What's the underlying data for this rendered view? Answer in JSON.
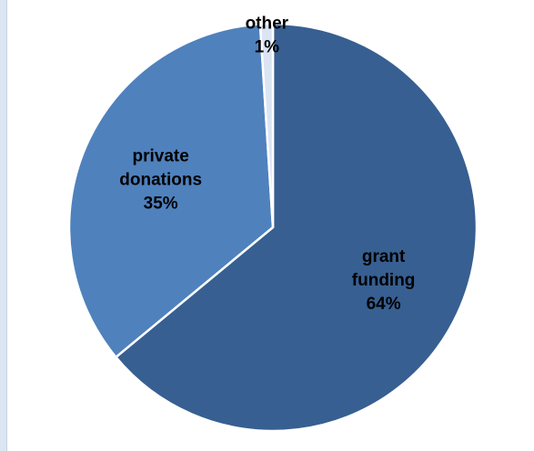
{
  "chart_data": {
    "type": "pie",
    "slices": [
      {
        "category": "grant funding",
        "label_lines": [
          "grant",
          "funding"
        ],
        "value": 64,
        "value_label": "64%",
        "color": "#375f91"
      },
      {
        "category": "private donations",
        "label_lines": [
          "private",
          "donations"
        ],
        "value": 35,
        "value_label": "35%",
        "color": "#4f81bd"
      },
      {
        "category": "other",
        "label_lines": [
          "other"
        ],
        "value": 1,
        "value_label": "1%",
        "color": "#dae4f3"
      }
    ],
    "start_angle_deg": 0,
    "direction": "clockwise",
    "legend": "none",
    "data_labels": "inside"
  },
  "colors": {
    "slice_border": "#ffffff",
    "page_background": "#dce6f2",
    "plot_background": "#ffffff"
  }
}
